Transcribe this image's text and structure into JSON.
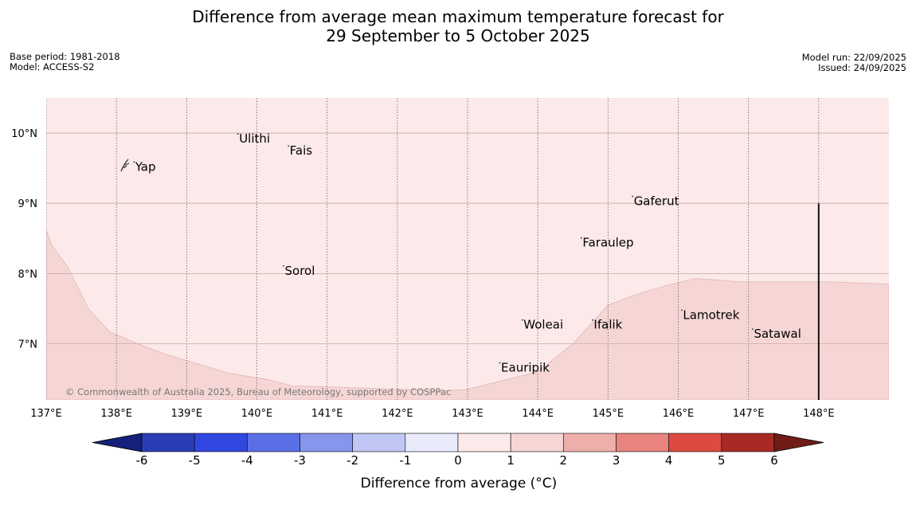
{
  "title": {
    "line1": "Difference from average mean maximum temperature forecast for",
    "line2": "29 September to 5 October 2025"
  },
  "meta": {
    "base_period": "Base period: 1981-2018",
    "model": "Model: ACCESS-S2",
    "model_run": "Model run: 22/09/2025",
    "issued": "Issued: 24/09/2025"
  },
  "map": {
    "lon_range": [
      137,
      149
    ],
    "lat_range": [
      6.2,
      10.5
    ],
    "lon_ticks": [
      {
        "value": 137,
        "label": "137°E"
      },
      {
        "value": 138,
        "label": "138°E"
      },
      {
        "value": 139,
        "label": "139°E"
      },
      {
        "value": 140,
        "label": "140°E"
      },
      {
        "value": 141,
        "label": "141°E"
      },
      {
        "value": 142,
        "label": "142°E"
      },
      {
        "value": 143,
        "label": "143°E"
      },
      {
        "value": 144,
        "label": "144°E"
      },
      {
        "value": 145,
        "label": "145°E"
      },
      {
        "value": 146,
        "label": "146°E"
      },
      {
        "value": 147,
        "label": "147°E"
      },
      {
        "value": 148,
        "label": "148°E"
      }
    ],
    "lat_ticks": [
      {
        "value": 10,
        "label": "10°N"
      },
      {
        "value": 9,
        "label": "9°N"
      },
      {
        "value": 8,
        "label": "8°N"
      },
      {
        "value": 7,
        "label": "7°N"
      }
    ],
    "background_color": "#fbeae9",
    "warm_region_color": "#f5d6d4",
    "warm_region_boundary": [
      [
        137.0,
        8.62
      ],
      [
        137.08,
        8.4
      ],
      [
        137.3,
        8.1
      ],
      [
        137.6,
        7.5
      ],
      [
        137.9,
        7.17
      ],
      [
        138.3,
        7.0
      ],
      [
        138.7,
        6.85
      ],
      [
        139.1,
        6.73
      ],
      [
        139.6,
        6.58
      ],
      [
        140.2,
        6.48
      ],
      [
        140.5,
        6.4
      ],
      [
        141.2,
        6.38
      ],
      [
        142.0,
        6.35
      ],
      [
        142.7,
        6.33
      ],
      [
        143.0,
        6.35
      ],
      [
        143.6,
        6.5
      ],
      [
        144.0,
        6.6
      ],
      [
        144.5,
        7.0
      ],
      [
        145.0,
        7.55
      ],
      [
        145.4,
        7.7
      ],
      [
        145.8,
        7.82
      ],
      [
        146.25,
        7.93
      ],
      [
        146.9,
        7.88
      ],
      [
        147.5,
        7.88
      ],
      [
        148.2,
        7.88
      ],
      [
        149.0,
        7.85
      ],
      [
        149.0,
        6.2
      ],
      [
        137.0,
        6.2
      ]
    ],
    "boundary_line": {
      "lon": 148,
      "lat_from": 6.2,
      "lat_to": 9.0
    },
    "places": [
      {
        "name": "Yap",
        "lon": 138.25,
        "lat": 9.52
      },
      {
        "name": "Ulithi",
        "lon": 139.73,
        "lat": 9.92
      },
      {
        "name": "Fais",
        "lon": 140.45,
        "lat": 9.75
      },
      {
        "name": "Gaferut",
        "lon": 145.35,
        "lat": 9.03
      },
      {
        "name": "Faraulep",
        "lon": 144.62,
        "lat": 8.44
      },
      {
        "name": "Sorol",
        "lon": 140.38,
        "lat": 8.04
      },
      {
        "name": "Woleai",
        "lon": 143.78,
        "lat": 7.27
      },
      {
        "name": "Ifalik",
        "lon": 144.78,
        "lat": 7.27
      },
      {
        "name": "Lamotrek",
        "lon": 146.05,
        "lat": 7.41
      },
      {
        "name": "Satawal",
        "lon": 147.06,
        "lat": 7.14
      },
      {
        "name": "Eauripik",
        "lon": 143.46,
        "lat": 6.66
      }
    ],
    "copyright": "© Commonwealth of Australia 2025, Bureau of Meteorology, supported by COSPPac"
  },
  "colorbar": {
    "label": "Difference from average (°C)",
    "ticks": [
      "-6",
      "-5",
      "-4",
      "-3",
      "-2",
      "-1",
      "0",
      "1",
      "2",
      "3",
      "4",
      "5",
      "6"
    ],
    "under_color": "#15207a",
    "over_color": "#701c17",
    "bins": [
      {
        "from": -6,
        "to": -5,
        "color": "#2b3db4"
      },
      {
        "from": -5,
        "to": -4,
        "color": "#3047e0"
      },
      {
        "from": -4,
        "to": -3,
        "color": "#5a6fe6"
      },
      {
        "from": -3,
        "to": -2,
        "color": "#8796ec"
      },
      {
        "from": -2,
        "to": -1,
        "color": "#c1c7f4"
      },
      {
        "from": -1,
        "to": 0,
        "color": "#e9ebfb"
      },
      {
        "from": 0,
        "to": 1,
        "color": "#fbeae9"
      },
      {
        "from": 1,
        "to": 2,
        "color": "#f5d6d4"
      },
      {
        "from": 2,
        "to": 3,
        "color": "#eeafab"
      },
      {
        "from": 3,
        "to": 4,
        "color": "#e8847e"
      },
      {
        "from": 4,
        "to": 5,
        "color": "#dd4a41"
      },
      {
        "from": 5,
        "to": 6,
        "color": "#a82a24"
      }
    ]
  }
}
